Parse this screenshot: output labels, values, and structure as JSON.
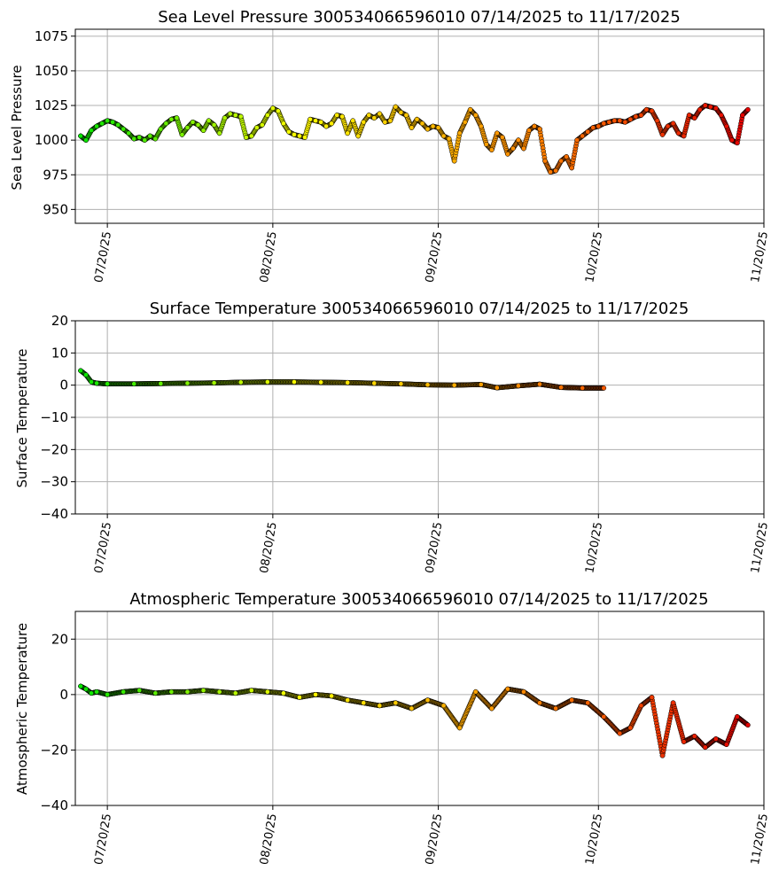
{
  "chart_data": [
    {
      "type": "scatter",
      "title": "Sea Level Pressure 300534066596010  07/14/2025 to 11/17/2025",
      "ylabel": "Sea Level Pressure",
      "ylim": [
        940,
        1080
      ],
      "yticks": [
        "950",
        "975",
        "1000",
        "1025",
        "1050",
        "1075"
      ],
      "xlim": [
        "2025-07-14",
        "2025-11-20"
      ],
      "xticks": [
        "07/20/25",
        "08/20/25",
        "09/20/25",
        "10/20/25",
        "11/20/25"
      ],
      "grid": true,
      "series": [
        {
          "x": [
            "2025-07-15",
            "2025-07-16",
            "2025-07-17",
            "2025-07-18",
            "2025-07-19",
            "2025-07-20",
            "2025-07-21",
            "2025-07-22",
            "2025-07-23",
            "2025-07-24",
            "2025-07-25",
            "2025-07-26",
            "2025-07-27",
            "2025-07-28",
            "2025-07-29",
            "2025-07-30",
            "2025-07-31",
            "2025-08-01",
            "2025-08-02",
            "2025-08-03",
            "2025-08-04",
            "2025-08-05",
            "2025-08-06",
            "2025-08-07",
            "2025-08-08",
            "2025-08-09",
            "2025-08-10",
            "2025-08-11",
            "2025-08-12",
            "2025-08-13",
            "2025-08-14",
            "2025-08-15",
            "2025-08-16",
            "2025-08-17",
            "2025-08-18",
            "2025-08-19",
            "2025-08-20",
            "2025-08-21",
            "2025-08-22",
            "2025-08-23",
            "2025-08-24",
            "2025-08-25",
            "2025-08-26",
            "2025-08-27",
            "2025-08-28",
            "2025-08-29",
            "2025-08-30",
            "2025-08-31",
            "2025-09-01",
            "2025-09-02",
            "2025-09-03",
            "2025-09-04",
            "2025-09-05",
            "2025-09-06",
            "2025-09-07",
            "2025-09-08",
            "2025-09-09",
            "2025-09-10",
            "2025-09-11",
            "2025-09-12",
            "2025-09-13",
            "2025-09-14",
            "2025-09-15",
            "2025-09-16",
            "2025-09-17",
            "2025-09-18",
            "2025-09-19",
            "2025-09-20",
            "2025-09-21",
            "2025-09-22",
            "2025-09-23",
            "2025-09-24",
            "2025-09-25",
            "2025-09-26",
            "2025-09-27",
            "2025-09-28",
            "2025-09-29",
            "2025-09-30",
            "2025-10-01",
            "2025-10-02",
            "2025-10-03",
            "2025-10-04",
            "2025-10-05",
            "2025-10-06",
            "2025-10-07",
            "2025-10-08",
            "2025-10-09",
            "2025-10-10",
            "2025-10-11",
            "2025-10-12",
            "2025-10-13",
            "2025-10-14",
            "2025-10-15",
            "2025-10-16",
            "2025-10-17",
            "2025-10-18",
            "2025-10-19",
            "2025-10-20",
            "2025-10-21",
            "2025-10-22",
            "2025-10-23",
            "2025-10-24",
            "2025-10-25",
            "2025-10-26",
            "2025-10-27",
            "2025-10-28",
            "2025-10-29",
            "2025-10-30",
            "2025-10-31",
            "2025-11-01",
            "2025-11-02",
            "2025-11-03",
            "2025-11-04",
            "2025-11-05",
            "2025-11-06",
            "2025-11-07",
            "2025-11-08",
            "2025-11-09",
            "2025-11-10",
            "2025-11-11",
            "2025-11-12",
            "2025-11-13",
            "2025-11-14",
            "2025-11-15",
            "2025-11-16",
            "2025-11-17"
          ],
          "y": [
            1003,
            1000,
            1007,
            1010,
            1012,
            1014,
            1013,
            1011,
            1008,
            1005,
            1001,
            1002,
            1000,
            1003,
            1001,
            1008,
            1012,
            1015,
            1016,
            1004,
            1009,
            1013,
            1011,
            1007,
            1014,
            1011,
            1005,
            1016,
            1019,
            1018,
            1017,
            1002,
            1003,
            1009,
            1011,
            1018,
            1023,
            1021,
            1012,
            1006,
            1004,
            1003,
            1002,
            1015,
            1014,
            1013,
            1010,
            1012,
            1018,
            1017,
            1005,
            1014,
            1003,
            1013,
            1018,
            1016,
            1019,
            1013,
            1014,
            1024,
            1020,
            1018,
            1009,
            1015,
            1012,
            1008,
            1010,
            1009,
            1003,
            1001,
            985,
            1005,
            1013,
            1022,
            1018,
            1010,
            997,
            993,
            1005,
            1002,
            990,
            994,
            1000,
            994,
            1007,
            1010,
            1008,
            985,
            977,
            978,
            985,
            988,
            980,
            1000,
            1003,
            1006,
            1009,
            1010,
            1012,
            1013,
            1014,
            1014,
            1013,
            1015,
            1017,
            1018,
            1022,
            1021,
            1014,
            1004,
            1010,
            1012,
            1005,
            1003,
            1018,
            1016,
            1022,
            1025,
            1024,
            1023,
            1018,
            1010,
            1000,
            998,
            1018,
            1022
          ]
        }
      ]
    },
    {
      "type": "scatter",
      "title": "Surface Temperature 300534066596010  07/14/2025 to 11/17/2025",
      "ylabel": "Surface Temperature",
      "ylim": [
        -40,
        20
      ],
      "yticks": [
        "20",
        "10",
        "0",
        "−10",
        "−20",
        "−30",
        "−40"
      ],
      "xlim": [
        "2025-07-14",
        "2025-11-20"
      ],
      "xticks": [
        "07/20/25",
        "08/20/25",
        "09/20/25",
        "10/20/25",
        "11/20/25"
      ],
      "grid": true,
      "series": [
        {
          "x": [
            "2025-07-15",
            "2025-07-16",
            "2025-07-17",
            "2025-07-18",
            "2025-07-20",
            "2025-07-25",
            "2025-07-30",
            "2025-08-04",
            "2025-08-09",
            "2025-08-14",
            "2025-08-19",
            "2025-08-24",
            "2025-08-29",
            "2025-09-03",
            "2025-09-08",
            "2025-09-13",
            "2025-09-18",
            "2025-09-23",
            "2025-09-28",
            "2025-10-01",
            "2025-10-05",
            "2025-10-09",
            "2025-10-13",
            "2025-10-17",
            "2025-10-21"
          ],
          "y": [
            4.5,
            3.2,
            1.0,
            0.6,
            0.4,
            0.4,
            0.5,
            0.6,
            0.7,
            0.9,
            1.0,
            1.0,
            0.9,
            0.8,
            0.6,
            0.4,
            0.1,
            0.0,
            0.2,
            -0.8,
            -0.2,
            0.3,
            -0.7,
            -0.9,
            -0.9
          ]
        }
      ]
    },
    {
      "type": "scatter",
      "title": "Atmospheric Temperature 300534066596010  07/14/2025 to 11/17/2025",
      "ylabel": "Atmospheric Temperature",
      "ylim": [
        -40,
        30
      ],
      "yticks": [
        "20",
        "0",
        "−20",
        "−40"
      ],
      "xlim": [
        "2025-07-14",
        "2025-11-20"
      ],
      "xticks": [
        "07/20/25",
        "08/20/25",
        "09/20/25",
        "10/20/25",
        "11/20/25"
      ],
      "grid": true,
      "series": [
        {
          "x": [
            "2025-07-15",
            "2025-07-16",
            "2025-07-17",
            "2025-07-18",
            "2025-07-20",
            "2025-07-23",
            "2025-07-26",
            "2025-07-29",
            "2025-08-01",
            "2025-08-04",
            "2025-08-07",
            "2025-08-10",
            "2025-08-13",
            "2025-08-16",
            "2025-08-19",
            "2025-08-22",
            "2025-08-25",
            "2025-08-28",
            "2025-08-31",
            "2025-09-03",
            "2025-09-06",
            "2025-09-09",
            "2025-09-12",
            "2025-09-15",
            "2025-09-18",
            "2025-09-21",
            "2025-09-24",
            "2025-09-27",
            "2025-09-30",
            "2025-10-03",
            "2025-10-06",
            "2025-10-09",
            "2025-10-12",
            "2025-10-15",
            "2025-10-18",
            "2025-10-21",
            "2025-10-24",
            "2025-10-26",
            "2025-10-28",
            "2025-10-30",
            "2025-11-01",
            "2025-11-03",
            "2025-11-05",
            "2025-11-07",
            "2025-11-09",
            "2025-11-11",
            "2025-11-13",
            "2025-11-15",
            "2025-11-17"
          ],
          "y": [
            3,
            2,
            0.5,
            1,
            0,
            1,
            1.5,
            0.5,
            1,
            1,
            1.5,
            1,
            0.5,
            1.5,
            1,
            0.5,
            -1,
            0,
            -0.5,
            -2,
            -3,
            -4,
            -3,
            -5,
            -2,
            -4,
            -12,
            1,
            -5,
            2,
            1,
            -3,
            -5,
            -2,
            -3,
            -8,
            -14,
            -12,
            -4,
            -1,
            -22,
            -3,
            -17,
            -15,
            -19,
            -16,
            -18,
            -8,
            -11
          ]
        }
      ]
    }
  ]
}
